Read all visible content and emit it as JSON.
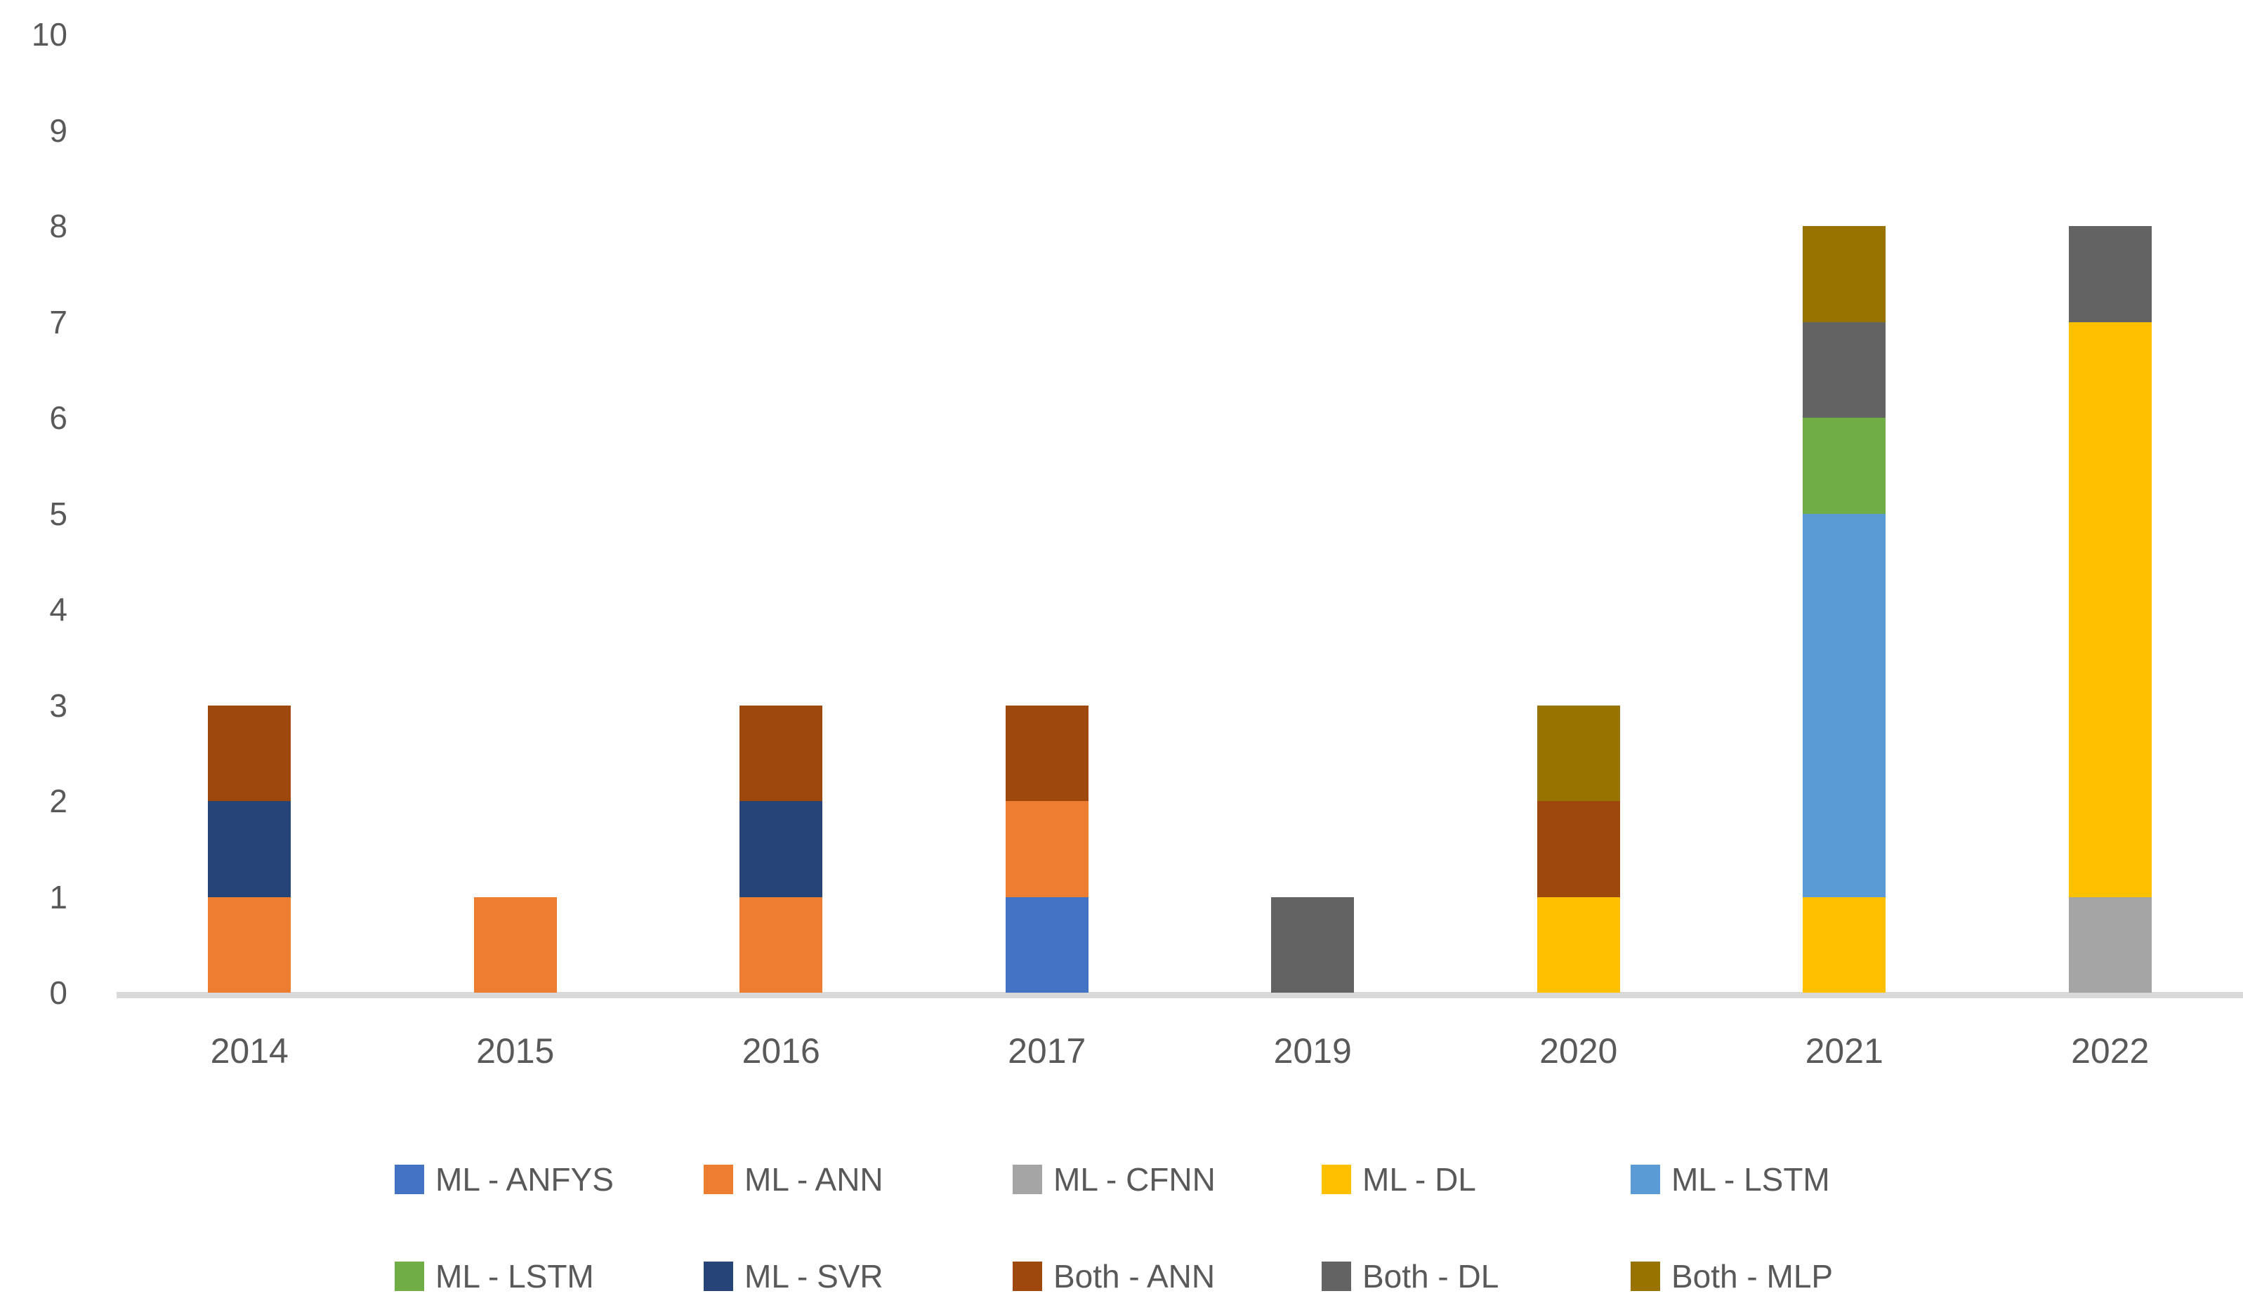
{
  "chart_data": {
    "type": "bar",
    "stacked": true,
    "title": "",
    "xlabel": "",
    "ylabel": "",
    "categories": [
      "2014",
      "2015",
      "2016",
      "2017",
      "2019",
      "2020",
      "2021",
      "2022"
    ],
    "series": [
      {
        "name": "ML - ANFYS",
        "color": "#4472C4",
        "values": [
          0,
          0,
          0,
          1,
          0,
          0,
          0,
          0
        ]
      },
      {
        "name": "ML - ANN",
        "color": "#ED7D31",
        "values": [
          1,
          1,
          1,
          1,
          0,
          0,
          0,
          0
        ]
      },
      {
        "name": "ML - CFNN",
        "color": "#A5A5A5",
        "values": [
          0,
          0,
          0,
          0,
          0,
          0,
          0,
          1
        ]
      },
      {
        "name": "ML - DL",
        "color": "#FFC000",
        "values": [
          0,
          0,
          0,
          0,
          0,
          1,
          1,
          6
        ]
      },
      {
        "name": "ML - LSTM",
        "color": "#5B9BD5",
        "values": [
          0,
          0,
          0,
          0,
          0,
          0,
          4,
          0
        ]
      },
      {
        "name": "ML - LSTM",
        "color": "#70AD47",
        "values": [
          0,
          0,
          0,
          0,
          0,
          0,
          1,
          0
        ]
      },
      {
        "name": "ML - SVR",
        "color": "#264478",
        "values": [
          1,
          0,
          1,
          0,
          0,
          0,
          0,
          0
        ]
      },
      {
        "name": "Both - ANN",
        "color": "#9E480E",
        "values": [
          1,
          0,
          1,
          1,
          0,
          1,
          0,
          0
        ]
      },
      {
        "name": "Both - DL",
        "color": "#636363",
        "values": [
          0,
          0,
          0,
          0,
          1,
          0,
          1,
          1
        ]
      },
      {
        "name": "Both - MLP",
        "color": "#997300",
        "values": [
          0,
          0,
          0,
          0,
          0,
          1,
          1,
          0
        ]
      }
    ],
    "category_totals": [
      3,
      1,
      3,
      3,
      1,
      3,
      8,
      8
    ],
    "ylim": [
      0,
      10
    ],
    "yticks": [
      0,
      1,
      2,
      3,
      4,
      5,
      6,
      7,
      8,
      9,
      10
    ],
    "grid": false,
    "legend_position": "bottom",
    "legend_rows": [
      [
        0,
        1,
        2,
        3,
        4
      ],
      [
        5,
        6,
        7,
        8,
        9
      ]
    ],
    "axis_text_color": "#595959",
    "baseline_color": "#D9D9D9"
  }
}
